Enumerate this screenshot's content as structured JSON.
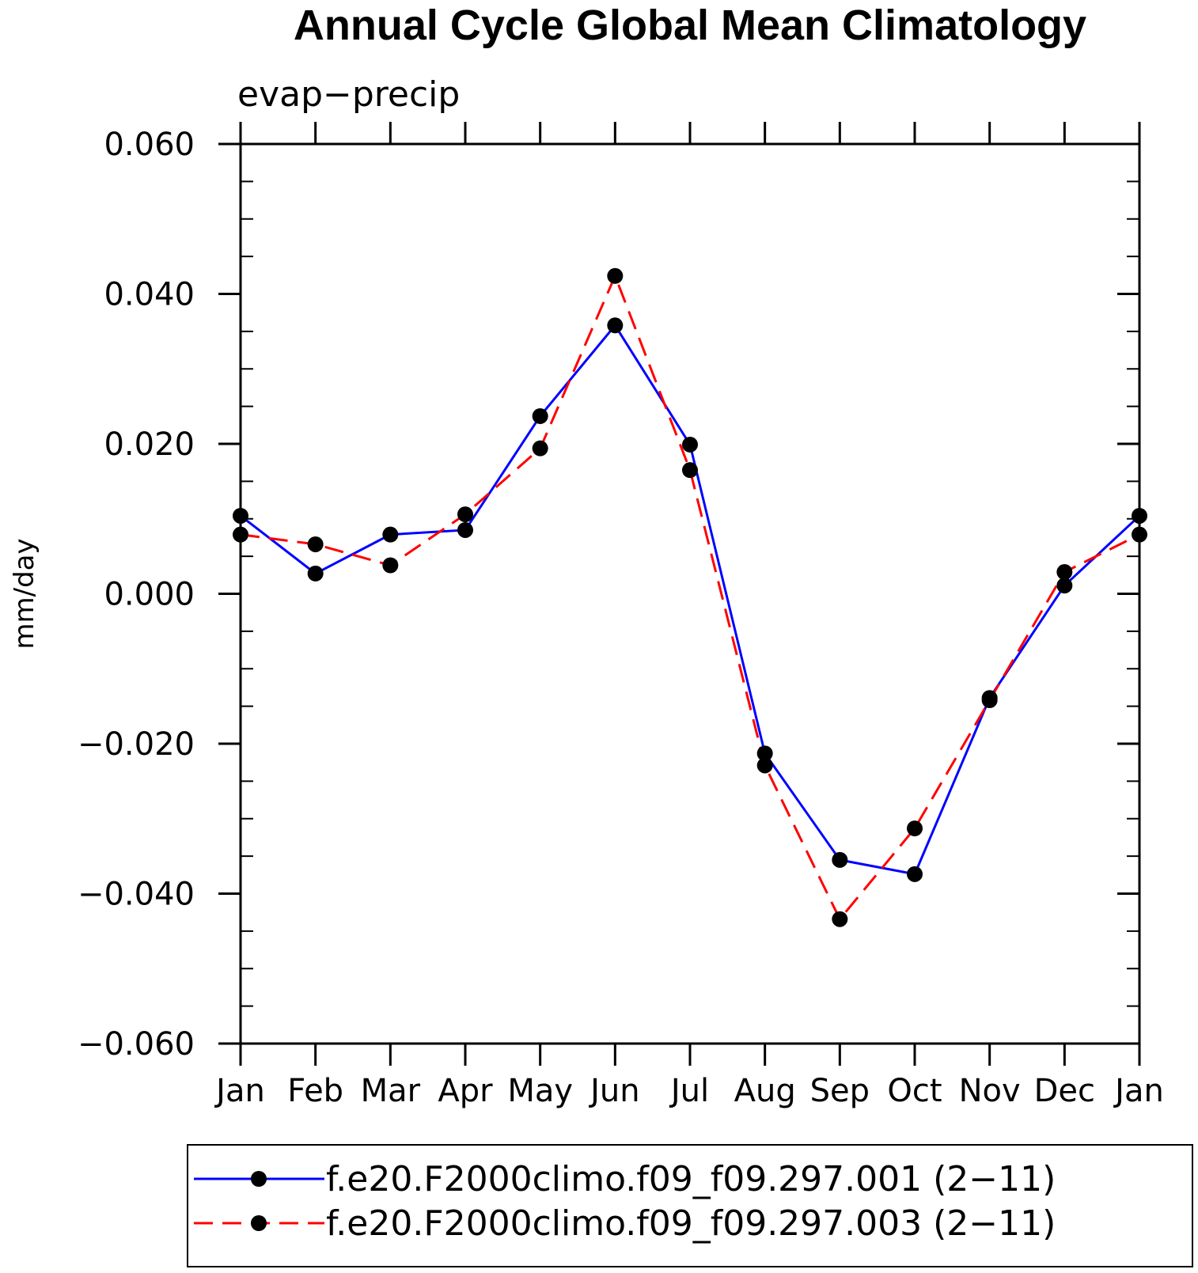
{
  "chart_data": {
    "type": "line",
    "title": "Annual Cycle Global Mean Climatology",
    "subtitle": "evap−precip",
    "ylabel": "mm/day",
    "xlabel": "",
    "categories": [
      "Jan",
      "Feb",
      "Mar",
      "Apr",
      "May",
      "Jun",
      "Jul",
      "Aug",
      "Sep",
      "Oct",
      "Nov",
      "Dec",
      "Jan"
    ],
    "ylim": [
      -0.06,
      0.06
    ],
    "yticks": [
      0.06,
      0.04,
      0.02,
      0.0,
      -0.02,
      -0.04,
      -0.06
    ],
    "ytick_labels": [
      "0.060",
      "0.040",
      "0.020",
      "0.000",
      "−0.020",
      "−0.040",
      "−0.060"
    ],
    "series": [
      {
        "name": "f.e20.F2000climo.f09_f09.297.001 (2−11)",
        "color": "#0000ff",
        "dash": "solid",
        "values": [
          0.0104,
          0.0027,
          0.0079,
          0.0085,
          0.0237,
          0.0358,
          0.0199,
          -0.0213,
          -0.0355,
          -0.0374,
          -0.0139,
          0.0011,
          0.0104
        ]
      },
      {
        "name": "f.e20.F2000climo.f09_f09.297.003 (2−11)",
        "color": "#ff0000",
        "dash": "dashed",
        "values": [
          0.0079,
          0.0066,
          0.0038,
          0.0106,
          0.0194,
          0.0424,
          0.0165,
          -0.0229,
          -0.0434,
          -0.0313,
          -0.0142,
          0.0029,
          0.0079
        ]
      }
    ],
    "marker_color": "#000000",
    "grid": false,
    "legend_position": "bottom"
  }
}
